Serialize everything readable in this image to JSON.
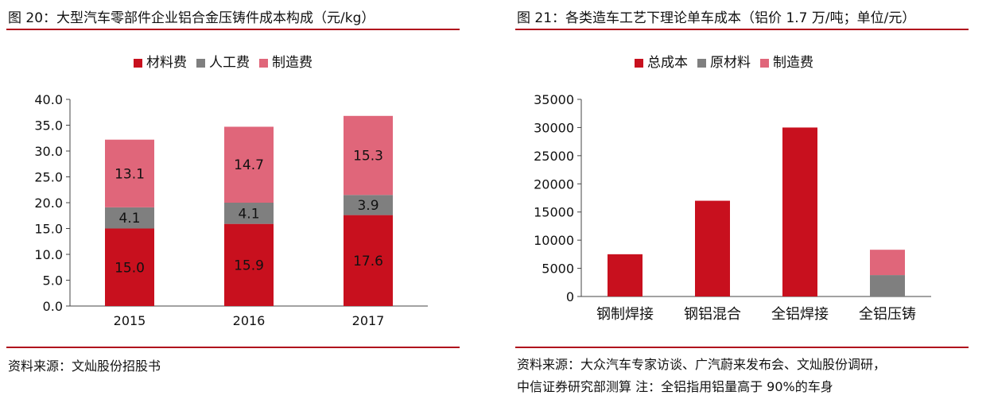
{
  "left_panel": {
    "title": "图 20：大型汽车零部件企业铝合金压铸件成本构成（元/kg）",
    "source": "资料来源：文灿股份招股书"
  },
  "right_panel": {
    "title": "图 21：各类造车工艺下理论单车成本（铝价 1.7 万/吨；单位/元）",
    "source_line1": "资料来源：大众汽车专家访谈、广汽蔚来发布会、文灿股份调研，",
    "source_line2": "中信证券研究部测算 注：全铝指用铝量高于 90%的车身"
  },
  "colors": {
    "red": "#c8101e",
    "gray": "#7f7f7f",
    "pink": "#e0667a",
    "rule": "#b00e1c"
  },
  "chart_data": [
    {
      "type": "bar",
      "stacked": true,
      "categories": [
        "2015",
        "2016",
        "2017"
      ],
      "series": [
        {
          "name": "材料费",
          "values": [
            15.0,
            15.9,
            17.6
          ],
          "color": "#c8101e"
        },
        {
          "name": "人工费",
          "values": [
            4.1,
            4.1,
            3.9
          ],
          "color": "#7f7f7f"
        },
        {
          "name": "制造费",
          "values": [
            13.1,
            14.7,
            15.3
          ],
          "color": "#e0667a"
        }
      ],
      "data_labels": [
        [
          "15.0",
          "15.9",
          "17.6"
        ],
        [
          "4.1",
          "4.1",
          "3.9"
        ],
        [
          "13.1",
          "14.7",
          "15.3"
        ]
      ],
      "ylim": [
        0,
        40
      ],
      "yticks": [
        "0.0",
        "5.0",
        "10.0",
        "15.0",
        "20.0",
        "25.0",
        "30.0",
        "35.0",
        "40.0"
      ],
      "legend_position": "top",
      "grid": false
    },
    {
      "type": "bar",
      "stacked": true,
      "categories": [
        "钢制焊接",
        "钢铝混合",
        "全铝焊接",
        "全铝压铸"
      ],
      "series": [
        {
          "name": "总成本",
          "values": [
            7500,
            17000,
            30000,
            null
          ],
          "color": "#c8101e"
        },
        {
          "name": "原材料",
          "values": [
            null,
            null,
            null,
            3800
          ],
          "color": "#7f7f7f"
        },
        {
          "name": "制造费",
          "values": [
            null,
            null,
            null,
            4500
          ],
          "color": "#e0667a"
        }
      ],
      "ylim": [
        0,
        35000
      ],
      "yticks": [
        "0",
        "5000",
        "10000",
        "15000",
        "20000",
        "25000",
        "30000",
        "35000"
      ],
      "legend_position": "top",
      "grid": false
    }
  ]
}
